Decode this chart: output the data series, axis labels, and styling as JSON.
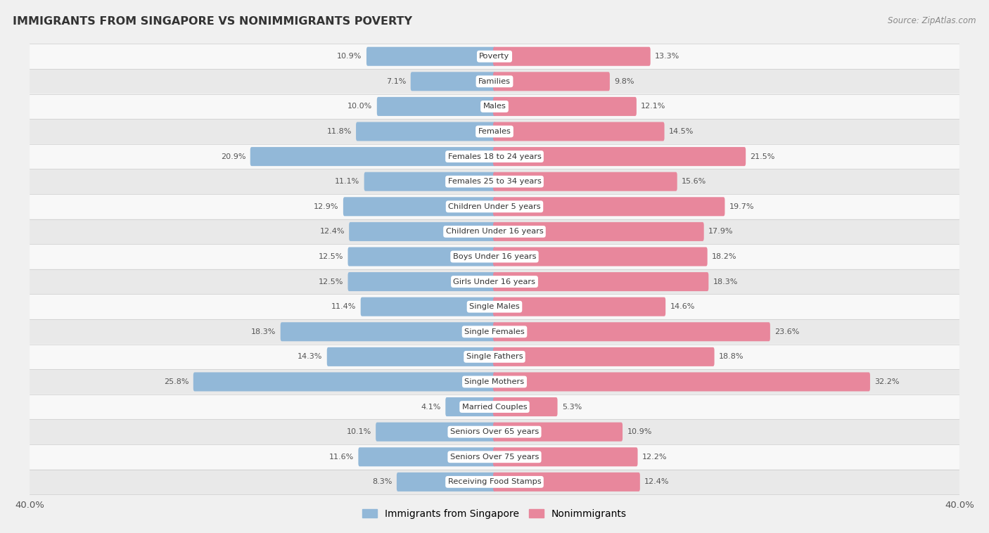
{
  "title": "IMMIGRANTS FROM SINGAPORE VS NONIMMIGRANTS POVERTY",
  "source": "Source: ZipAtlas.com",
  "categories": [
    "Poverty",
    "Families",
    "Males",
    "Females",
    "Females 18 to 24 years",
    "Females 25 to 34 years",
    "Children Under 5 years",
    "Children Under 16 years",
    "Boys Under 16 years",
    "Girls Under 16 years",
    "Single Males",
    "Single Females",
    "Single Fathers",
    "Single Mothers",
    "Married Couples",
    "Seniors Over 65 years",
    "Seniors Over 75 years",
    "Receiving Food Stamps"
  ],
  "immigrants": [
    10.9,
    7.1,
    10.0,
    11.8,
    20.9,
    11.1,
    12.9,
    12.4,
    12.5,
    12.5,
    11.4,
    18.3,
    14.3,
    25.8,
    4.1,
    10.1,
    11.6,
    8.3
  ],
  "nonimmigrants": [
    13.3,
    9.8,
    12.1,
    14.5,
    21.5,
    15.6,
    19.7,
    17.9,
    18.2,
    18.3,
    14.6,
    23.6,
    18.8,
    32.2,
    5.3,
    10.9,
    12.2,
    12.4
  ],
  "immigrant_color": "#92b8d8",
  "nonimmigrant_color": "#e8879c",
  "axis_max": 40.0,
  "background_color": "#f0f0f0",
  "row_color_odd": "#f7f7f7",
  "row_color_even": "#e8e8e8",
  "legend_immigrant": "Immigrants from Singapore",
  "legend_nonimmigrant": "Nonimmigrants"
}
